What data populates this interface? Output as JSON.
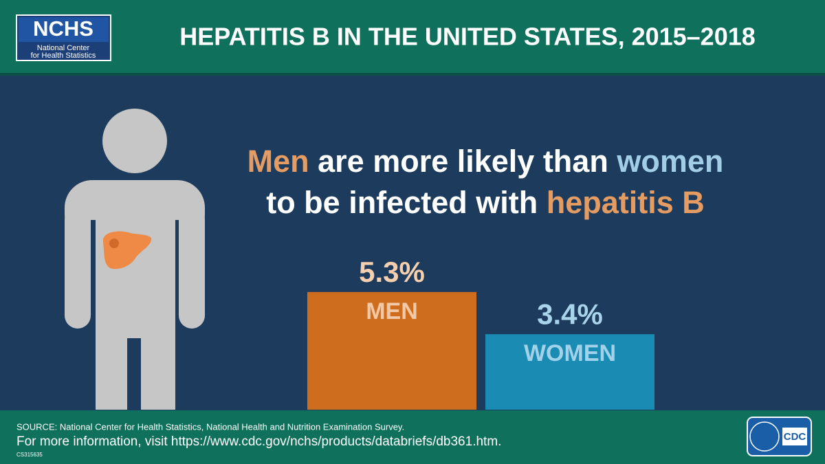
{
  "header": {
    "logo": {
      "acronym": "NCHS",
      "line1": "National Center",
      "line2": "for Health Statistics"
    },
    "title": "HEPATITIS B IN THE UNITED STATES, 2015–2018"
  },
  "headline": {
    "line1": [
      "Men",
      "are more likely than",
      "women"
    ],
    "line2": [
      "to be infected with",
      "hepatitis B"
    ]
  },
  "chart_data": {
    "type": "bar",
    "categories": [
      "MEN",
      "WOMEN"
    ],
    "values": [
      5.3,
      3.4
    ],
    "value_labels": [
      "5.3%",
      "3.4%"
    ],
    "colors": [
      "#cf6d1e",
      "#1a8cb3"
    ]
  },
  "footer": {
    "source": "SOURCE: National Center for Health Statistics, National Health and Nutrition Examination Survey.",
    "more_info": "For more information, visit https://www.cdc.gov/nchs/products/databriefs/db361.htm.",
    "code": "CS315635",
    "logo": "CDC"
  }
}
